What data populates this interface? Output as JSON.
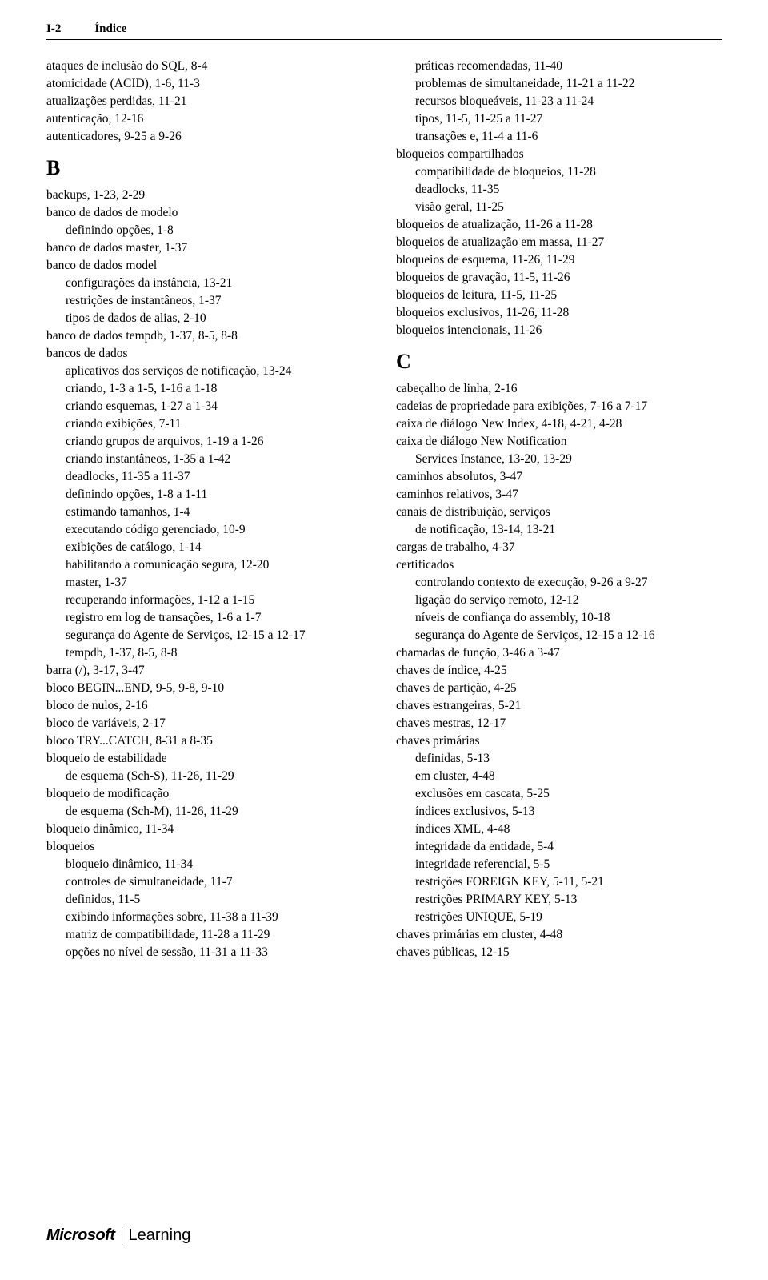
{
  "header": {
    "page_num": "I-2",
    "title": "Índice"
  },
  "left": {
    "pre": [
      {
        "indent": 0,
        "text": "ataques de inclusão do SQL, 8-4"
      },
      {
        "indent": 0,
        "text": "atomicidade (ACID), 1-6, 11-3"
      },
      {
        "indent": 0,
        "text": "atualizações perdidas, 11-21"
      },
      {
        "indent": 0,
        "text": "autenticação, 12-16"
      },
      {
        "indent": 0,
        "text": "autenticadores, 9-25 a 9-26"
      }
    ],
    "letter": "B",
    "entries": [
      {
        "indent": 0,
        "text": "backups, 1-23, 2-29"
      },
      {
        "indent": 0,
        "text": "banco de dados de modelo"
      },
      {
        "indent": 1,
        "text": "definindo opções, 1-8"
      },
      {
        "indent": 0,
        "text": "banco de dados master, 1-37"
      },
      {
        "indent": 0,
        "text": "banco de dados model"
      },
      {
        "indent": 1,
        "text": "configurações da instância, 13-21"
      },
      {
        "indent": 1,
        "text": "restrições de instantâneos, 1-37"
      },
      {
        "indent": 1,
        "text": "tipos de dados de alias, 2-10"
      },
      {
        "indent": 0,
        "text": "banco de dados tempdb, 1-37, 8-5, 8-8"
      },
      {
        "indent": 0,
        "text": "bancos de dados"
      },
      {
        "indent": 1,
        "text": "aplicativos dos serviços de notificação, 13-24"
      },
      {
        "indent": 1,
        "text": "criando, 1-3 a 1-5, 1-16 a 1-18"
      },
      {
        "indent": 1,
        "text": "criando esquemas, 1-27 a 1-34"
      },
      {
        "indent": 1,
        "text": "criando exibições, 7-11"
      },
      {
        "indent": 1,
        "text": "criando grupos de arquivos, 1-19 a 1-26"
      },
      {
        "indent": 1,
        "text": "criando instantâneos, 1-35 a 1-42"
      },
      {
        "indent": 1,
        "text": "deadlocks, 11-35 a 11-37"
      },
      {
        "indent": 1,
        "text": "definindo opções, 1-8 a 1-11"
      },
      {
        "indent": 1,
        "text": "estimando tamanhos, 1-4"
      },
      {
        "indent": 1,
        "text": "executando código gerenciado, 10-9"
      },
      {
        "indent": 1,
        "text": "exibições de catálogo, 1-14"
      },
      {
        "indent": 1,
        "text": "habilitando a comunicação segura, 12-20"
      },
      {
        "indent": 1,
        "text": "master, 1-37"
      },
      {
        "indent": 1,
        "text": "recuperando informações, 1-12 a 1-15"
      },
      {
        "indent": 1,
        "text": "registro em log de transações, 1-6 a 1-7"
      },
      {
        "indent": 1,
        "text": "segurança do Agente de Serviços, 12-15 a 12-17"
      },
      {
        "indent": 1,
        "text": "tempdb, 1-37, 8-5, 8-8"
      },
      {
        "indent": 0,
        "text": "barra (/), 3-17, 3-47"
      },
      {
        "indent": 0,
        "text": "bloco BEGIN...END, 9-5, 9-8, 9-10"
      },
      {
        "indent": 0,
        "text": "bloco de nulos, 2-16"
      },
      {
        "indent": 0,
        "text": "bloco de variáveis, 2-17"
      },
      {
        "indent": 0,
        "text": "bloco TRY...CATCH, 8-31 a 8-35"
      },
      {
        "indent": 0,
        "text": "bloqueio de estabilidade"
      },
      {
        "indent": 1,
        "text": "de esquema (Sch-S), 11-26, 11-29"
      },
      {
        "indent": 0,
        "text": "bloqueio de modificação"
      },
      {
        "indent": 1,
        "text": "de esquema (Sch-M), 11-26, 11-29"
      },
      {
        "indent": 0,
        "text": "bloqueio dinâmico, 11-34"
      },
      {
        "indent": 0,
        "text": "bloqueios"
      },
      {
        "indent": 1,
        "text": "bloqueio dinâmico, 11-34"
      },
      {
        "indent": 1,
        "text": "controles de simultaneidade, 11-7"
      },
      {
        "indent": 1,
        "text": "definidos, 11-5"
      },
      {
        "indent": 1,
        "text": "exibindo informações sobre, 11-38 a 11-39"
      },
      {
        "indent": 1,
        "text": "matriz de compatibilidade, 11-28 a 11-29"
      },
      {
        "indent": 1,
        "text": "opções no nível de sessão, 11-31 a 11-33"
      }
    ]
  },
  "right": {
    "pre": [
      {
        "indent": 1,
        "text": "práticas recomendadas, 11-40"
      },
      {
        "indent": 1,
        "text": "problemas de simultaneidade, 11-21 a 11-22"
      },
      {
        "indent": 1,
        "text": "recursos bloqueáveis, 11-23 a 11-24"
      },
      {
        "indent": 1,
        "text": "tipos, 11-5, 11-25 a 11-27"
      },
      {
        "indent": 1,
        "text": "transações e, 11-4 a 11-6"
      },
      {
        "indent": 0,
        "text": "bloqueios compartilhados"
      },
      {
        "indent": 1,
        "text": "compatibilidade de bloqueios, 11-28"
      },
      {
        "indent": 1,
        "text": "deadlocks, 11-35"
      },
      {
        "indent": 1,
        "text": "visão geral, 11-25"
      },
      {
        "indent": 0,
        "text": "bloqueios de atualização, 11-26 a 11-28"
      },
      {
        "indent": 0,
        "text": "bloqueios de atualização em massa, 11-27"
      },
      {
        "indent": 0,
        "text": "bloqueios de esquema, 11-26, 11-29"
      },
      {
        "indent": 0,
        "text": "bloqueios de gravação, 11-5, 11-26"
      },
      {
        "indent": 0,
        "text": "bloqueios de leitura, 11-5, 11-25"
      },
      {
        "indent": 0,
        "text": "bloqueios exclusivos, 11-26, 11-28"
      },
      {
        "indent": 0,
        "text": "bloqueios intencionais, 11-26"
      }
    ],
    "letter": "C",
    "entries": [
      {
        "indent": 0,
        "text": "cabeçalho de linha, 2-16"
      },
      {
        "indent": 0,
        "text": "cadeias de propriedade para exibições, 7-16 a 7-17"
      },
      {
        "indent": 0,
        "text": "caixa de diálogo New Index, 4-18, 4-21, 4-28"
      },
      {
        "indent": 0,
        "text": "caixa de diálogo New Notification"
      },
      {
        "indent": 1,
        "text": "Services Instance, 13-20, 13-29"
      },
      {
        "indent": 0,
        "text": "caminhos absolutos, 3-47"
      },
      {
        "indent": 0,
        "text": "caminhos relativos, 3-47"
      },
      {
        "indent": 0,
        "text": "canais de distribuição, serviços"
      },
      {
        "indent": 1,
        "text": "de notificação, 13-14, 13-21"
      },
      {
        "indent": 0,
        "text": "cargas de trabalho, 4-37"
      },
      {
        "indent": 0,
        "text": "certificados"
      },
      {
        "indent": 1,
        "text": "controlando contexto de execução, 9-26 a 9-27"
      },
      {
        "indent": 1,
        "text": "ligação do serviço remoto, 12-12"
      },
      {
        "indent": 1,
        "text": "níveis de confiança do assembly, 10-18"
      },
      {
        "indent": 1,
        "text": "segurança do Agente de Serviços, 12-15 a 12-16"
      },
      {
        "indent": 0,
        "text": "chamadas de função, 3-46 a 3-47"
      },
      {
        "indent": 0,
        "text": "chaves de índice, 4-25"
      },
      {
        "indent": 0,
        "text": "chaves de partição, 4-25"
      },
      {
        "indent": 0,
        "text": "chaves estrangeiras, 5-21"
      },
      {
        "indent": 0,
        "text": "chaves mestras, 12-17"
      },
      {
        "indent": 0,
        "text": "chaves primárias"
      },
      {
        "indent": 1,
        "text": "definidas, 5-13"
      },
      {
        "indent": 1,
        "text": "em cluster, 4-48"
      },
      {
        "indent": 1,
        "text": "exclusões em cascata, 5-25"
      },
      {
        "indent": 1,
        "text": "índices exclusivos, 5-13"
      },
      {
        "indent": 1,
        "text": "índices XML, 4-48"
      },
      {
        "indent": 1,
        "text": "integridade da entidade, 5-4"
      },
      {
        "indent": 1,
        "text": "integridade referencial, 5-5"
      },
      {
        "indent": 1,
        "text": "restrições FOREIGN KEY, 5-11, 5-21"
      },
      {
        "indent": 1,
        "text": "restrições PRIMARY KEY, 5-13"
      },
      {
        "indent": 1,
        "text": "restrições UNIQUE, 5-19"
      },
      {
        "indent": 0,
        "text": "chaves primárias em cluster, 4-48"
      },
      {
        "indent": 0,
        "text": "chaves públicas, 12-15"
      }
    ]
  },
  "footer": {
    "brand": "Microsoft",
    "sub": "Learning"
  }
}
